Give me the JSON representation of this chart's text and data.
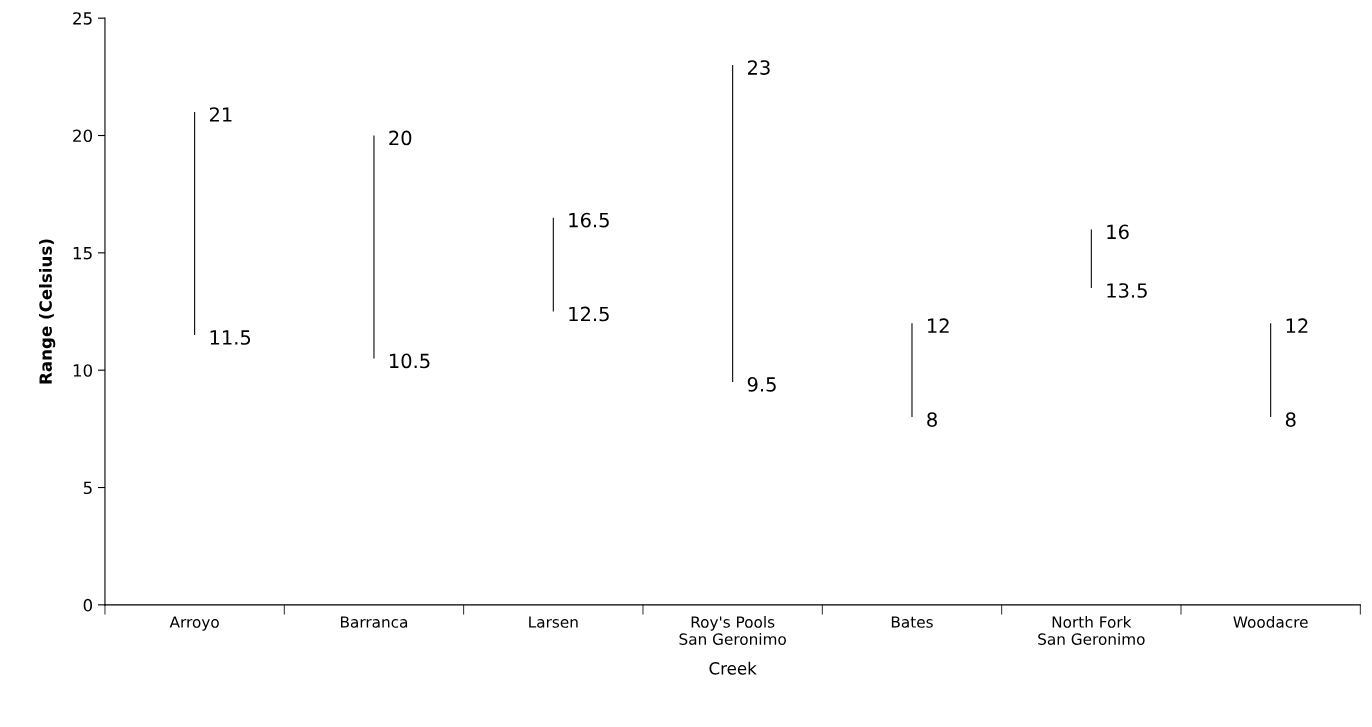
{
  "chart_data": {
    "type": "bar",
    "xlabel": "Creek",
    "ylabel": "Range (Celsius)",
    "categories": [
      "Arroyo",
      "Barranca",
      "Larsen",
      "Roy's Pools\nSan Geronimo",
      "Bates",
      "North Fork\nSan Geronimo",
      "Woodacre"
    ],
    "base": [
      11.5,
      10.5,
      12.5,
      9.5,
      8,
      13.5,
      8
    ],
    "values": [
      9.5,
      9.5,
      4,
      13.5,
      4,
      2.5,
      4
    ],
    "color": "#000000",
    "ylim": [
      0,
      25
    ],
    "yticks": [
      0,
      5,
      10,
      15,
      20,
      25
    ],
    "grid": false,
    "annotations": [
      {
        "text": "21",
        "x": "Arroyo",
        "y": 21
      },
      {
        "text": "11.5",
        "x": "Arroyo",
        "y": 11.5
      },
      {
        "text": "20",
        "x": "Barranca",
        "y": 20
      },
      {
        "text": "10.5",
        "x": "Barranca",
        "y": 10.5
      },
      {
        "text": "16.5",
        "x": "Larsen",
        "y": 16.5
      },
      {
        "text": "12.5",
        "x": "Larsen",
        "y": 12.5
      },
      {
        "text": "23",
        "x": "Roy's Pools\nSan Geronimo",
        "y": 23
      },
      {
        "text": "9.5",
        "x": "Roy's Pools\nSan Geronimo",
        "y": 9.5
      },
      {
        "text": "12",
        "x": "Bates",
        "y": 12
      },
      {
        "text": "8",
        "x": "Bates",
        "y": 8
      },
      {
        "text": "16",
        "x": "North Fork\nSan Geronimo",
        "y": 16
      },
      {
        "text": "13.5",
        "x": "North Fork\nSan Geronimo",
        "y": 13.5
      },
      {
        "text": "12",
        "x": "Woodacre",
        "y": 12
      },
      {
        "text": "8",
        "x": "Woodacre",
        "y": 8
      }
    ]
  }
}
